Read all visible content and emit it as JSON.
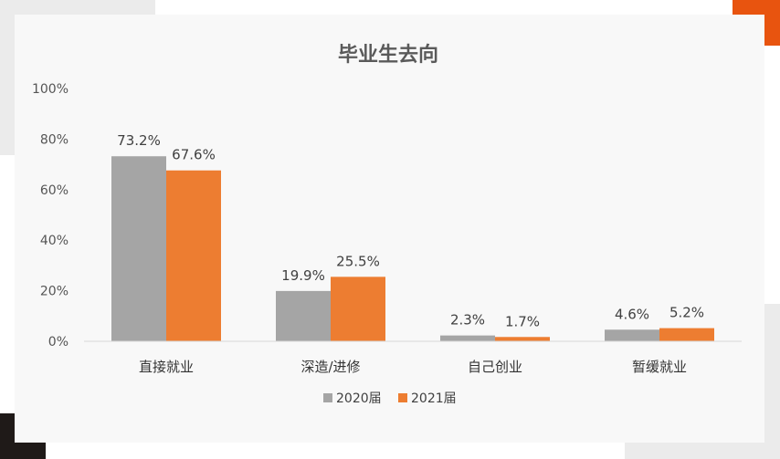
{
  "chart_data": {
    "type": "bar",
    "title": "毕业生去向",
    "categories": [
      "直接就业",
      "深造/进修",
      "自己创业",
      "暂缓就业"
    ],
    "series": [
      {
        "name": "2020届",
        "values": [
          73.2,
          19.9,
          2.3,
          4.6
        ],
        "color": "#a5a5a5"
      },
      {
        "name": "2021届",
        "values": [
          67.6,
          25.5,
          1.7,
          5.2
        ],
        "color": "#ed7d31"
      }
    ],
    "ylim": [
      0,
      100
    ],
    "yticks": [
      "0%",
      "20%",
      "40%",
      "60%",
      "80%",
      "100%"
    ],
    "value_suffix": "%",
    "grid": false,
    "legend_position": "bottom"
  }
}
